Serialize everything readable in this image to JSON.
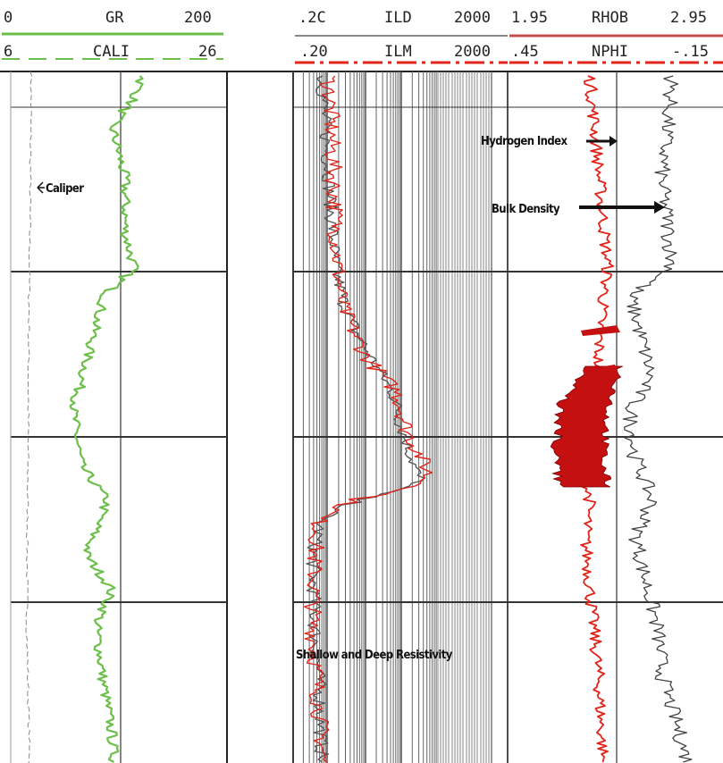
{
  "chart_data": {
    "type": "line",
    "tracks": [
      {
        "name": "gamma-ray-track",
        "scales": [
          {
            "mnemonic": "GR",
            "min": "0",
            "max": "200",
            "color": "#6cbf4a"
          },
          {
            "mnemonic": "CALI",
            "min": "6",
            "max": "26",
            "color": "#6cbf4a"
          }
        ],
        "annotations": [
          "Caliper"
        ]
      },
      {
        "name": "resistivity-track",
        "scales": [
          {
            "mnemonic": "ILD",
            "min": ".2C",
            "max": "2000",
            "color": "#777777"
          },
          {
            "mnemonic": "ILM",
            "min": ".20",
            "max": "2000",
            "color": "#e2231a"
          }
        ],
        "log_scale": true,
        "annotations": [
          "Shallow and Deep Resistivity"
        ]
      },
      {
        "name": "porosity-track",
        "scales": [
          {
            "mnemonic": "RHOB",
            "min": "1.95",
            "max": "2.95",
            "color": "#e2231a"
          },
          {
            "mnemonic": "NPHI",
            "min": ".45",
            "max": "-.15",
            "color": "#e2231a"
          }
        ],
        "annotations": [
          "Hydrogen Index",
          "Bulk Density"
        ]
      }
    ],
    "grid": true,
    "legend_position": "top",
    "colors": {
      "gr": "#6cbf4a",
      "resistivity_deep": "#555555",
      "resistivity_shallow": "#e2231a",
      "density": "#e2231a",
      "neutron": "#444444",
      "crossover_fill": "#c41010"
    }
  }
}
